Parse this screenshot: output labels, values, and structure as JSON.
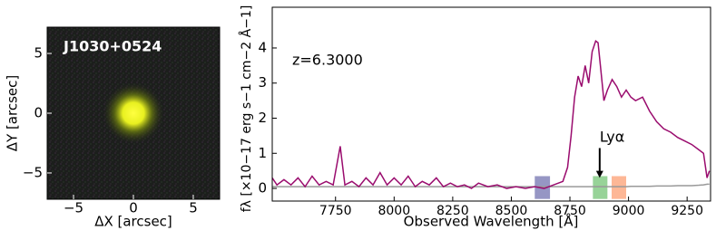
{
  "chart_data": [
    {
      "type": "image",
      "title": "J1030+0524",
      "xlabel": "ΔX [arcsec]",
      "ylabel": "ΔY [arcsec]",
      "xlim": [
        -7.2,
        7.2
      ],
      "ylim": [
        -7.2,
        7.2
      ],
      "xticks": [
        {
          "value": -5,
          "label": "−5"
        },
        0,
        5
      ],
      "yticks": [
        {
          "value": -5,
          "label": "−5"
        },
        0,
        5
      ]
    },
    {
      "type": "line",
      "xlabel": "Observed Wavelength [Å]",
      "ylabel": "fλ [×10−17 erg s−1 cm−2 Å−1]",
      "xlim": [
        7480,
        9350
      ],
      "ylim": [
        -0.36,
        5.16
      ],
      "xticks": [
        7750,
        8000,
        8250,
        8500,
        8750,
        9000,
        9250
      ],
      "yticks": [
        0,
        1,
        2,
        3,
        4
      ],
      "annotations": [
        {
          "text": "z=6.3000"
        },
        {
          "text": "Lyα",
          "x": 8877
        }
      ],
      "bands": [
        {
          "start": 8600,
          "end": 8665,
          "color": "#7373b0"
        },
        {
          "start": 8848,
          "end": 8910,
          "color": "#74c476"
        },
        {
          "start": 8928,
          "end": 8990,
          "color": "#fc9f73"
        }
      ],
      "x": [
        7480,
        7500,
        7530,
        7560,
        7590,
        7620,
        7650,
        7680,
        7710,
        7740,
        7770,
        7790,
        7820,
        7850,
        7880,
        7910,
        7940,
        7970,
        8000,
        8030,
        8060,
        8090,
        8120,
        8150,
        8180,
        8210,
        8240,
        8270,
        8300,
        8330,
        8360,
        8400,
        8440,
        8480,
        8520,
        8560,
        8600,
        8640,
        8680,
        8720,
        8740,
        8755,
        8770,
        8785,
        8800,
        8815,
        8830,
        8845,
        8860,
        8870,
        8880,
        8895,
        8910,
        8930,
        8950,
        8970,
        8990,
        9010,
        9030,
        9060,
        9090,
        9120,
        9150,
        9180,
        9210,
        9240,
        9270,
        9300,
        9320,
        9335,
        9345
      ],
      "series": [
        {
          "color": "#9a0c6e",
          "values": [
            0.3,
            0.1,
            0.25,
            0.1,
            0.3,
            0.05,
            0.35,
            0.1,
            0.2,
            0.1,
            1.2,
            0.1,
            0.2,
            0.05,
            0.3,
            0.1,
            0.45,
            0.1,
            0.3,
            0.1,
            0.35,
            0.05,
            0.2,
            0.1,
            0.3,
            0.05,
            0.15,
            0.05,
            0.1,
            0.0,
            0.15,
            0.05,
            0.1,
            0.0,
            0.05,
            0.0,
            0.05,
            0.0,
            0.1,
            0.2,
            0.6,
            1.5,
            2.6,
            3.2,
            2.9,
            3.5,
            3.0,
            3.9,
            4.2,
            4.15,
            3.5,
            2.5,
            2.8,
            3.1,
            2.9,
            2.6,
            2.8,
            2.6,
            2.5,
            2.6,
            2.2,
            1.9,
            1.7,
            1.6,
            1.45,
            1.35,
            1.25,
            1.1,
            1.0,
            0.3,
            0.5
          ]
        },
        {
          "color": "#999999",
          "values": [
            0.05,
            0.05,
            0.05,
            0.05,
            0.05,
            0.05,
            0.05,
            0.05,
            0.05,
            0.05,
            0.05,
            0.05,
            0.05,
            0.05,
            0.05,
            0.05,
            0.05,
            0.05,
            0.05,
            0.05,
            0.05,
            0.05,
            0.05,
            0.05,
            0.05,
            0.05,
            0.05,
            0.05,
            0.05,
            0.05,
            0.05,
            0.05,
            0.05,
            0.05,
            0.05,
            0.05,
            0.05,
            0.05,
            0.05,
            0.05,
            0.05,
            0.05,
            0.05,
            0.05,
            0.05,
            0.05,
            0.05,
            0.05,
            0.05,
            0.05,
            0.05,
            0.05,
            0.05,
            0.05,
            0.05,
            0.05,
            0.05,
            0.06,
            0.06,
            0.06,
            0.06,
            0.07,
            0.07,
            0.07,
            0.08,
            0.08,
            0.08,
            0.09,
            0.1,
            0.12,
            0.12
          ]
        }
      ]
    }
  ]
}
